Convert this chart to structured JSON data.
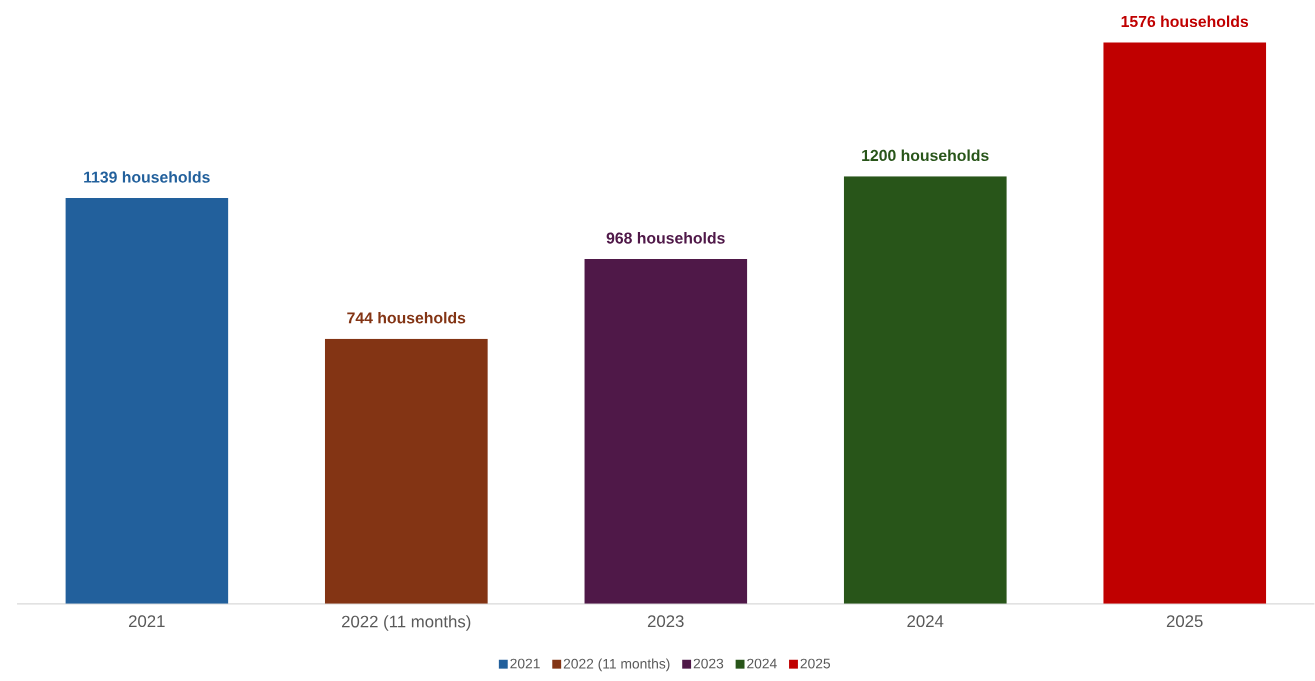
{
  "chart_data": {
    "type": "bar",
    "categories": [
      "2021",
      "2022 (11 months)",
      "2023",
      "2024",
      "2025"
    ],
    "series": [
      {
        "name": "2021",
        "color": "#22609c",
        "values": [
          1139,
          null,
          null,
          null,
          null
        ],
        "value_labels": [
          "1139 households",
          null,
          null,
          null,
          null
        ]
      },
      {
        "name": "2022 (11 months)",
        "color": "#833414",
        "values": [
          null,
          744,
          null,
          null,
          null
        ],
        "value_labels": [
          null,
          "744 households",
          null,
          null,
          null
        ]
      },
      {
        "name": "2023",
        "color": "#4f1848",
        "values": [
          null,
          null,
          968,
          null,
          null
        ],
        "value_labels": [
          null,
          null,
          "968 households",
          null,
          null
        ]
      },
      {
        "name": "2024",
        "color": "#285519",
        "values": [
          null,
          null,
          null,
          1200,
          null
        ],
        "value_labels": [
          null,
          null,
          null,
          "1200 households",
          null
        ]
      },
      {
        "name": "2025",
        "color": "#c00000",
        "values": [
          null,
          null,
          null,
          null,
          1576
        ],
        "value_labels": [
          null,
          null,
          null,
          null,
          "1576 households"
        ]
      }
    ],
    "legend": "bottom"
  }
}
